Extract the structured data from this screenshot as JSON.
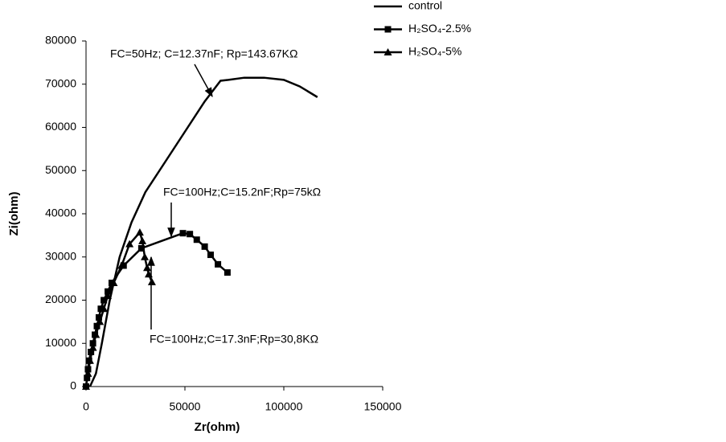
{
  "chart_data": {
    "type": "scatter",
    "x_label": "Zr(ohm)",
    "y_label": "Zi(ohm)",
    "xlim": [
      0,
      150000
    ],
    "xticks": [
      0,
      50000,
      100000,
      150000
    ],
    "ylim": [
      0,
      80000
    ],
    "yticks": [
      0,
      10000,
      20000,
      30000,
      40000,
      50000,
      60000,
      70000,
      80000
    ],
    "grid": false,
    "legend": "top-right",
    "annotations": [
      "FC=50Hz; C=12.37nF;  Rp=143.67KΩ",
      "FC=100Hz;C=15.2nF;Rp=75kΩ",
      "FC=100Hz;C=17.3nF;Rp=30,8KΩ"
    ],
    "series": [
      {
        "name": "control",
        "color": "#000000",
        "marker": "none",
        "x": [
          2000,
          5000,
          8000,
          12000,
          17000,
          23000,
          30000,
          40000,
          50000,
          60000,
          65000,
          68000,
          72000,
          80000,
          90000,
          100000,
          108000,
          117000
        ],
        "values": [
          0,
          3000,
          10000,
          20000,
          30000,
          38000,
          45000,
          52000,
          59000,
          66000,
          69000,
          70800,
          71000,
          71500,
          71500,
          71000,
          69500,
          67000
        ]
      },
      {
        "name": "H₂SO₄-2.5%",
        "color": "#000000",
        "marker": "square",
        "x": [
          0,
          500,
          1000,
          1500,
          2500,
          3500,
          4500,
          5500,
          6500,
          7500,
          9000,
          11000,
          13000,
          19000,
          28000,
          49000,
          52500,
          56000,
          60000,
          63000,
          66700,
          71500
        ],
        "values": [
          0,
          2000,
          4000,
          6000,
          8000,
          10000,
          12000,
          14000,
          16000,
          18000,
          20000,
          22000,
          24000,
          28000,
          32000,
          35500,
          35300,
          34000,
          32400,
          30500,
          28300,
          26400
        ]
      },
      {
        "name": "H₂SO₄-5%",
        "color": "#000000",
        "marker": "triangle",
        "x": [
          0,
          1000,
          2000,
          3500,
          5000,
          7000,
          9000,
          11000,
          14000,
          18000,
          22000,
          27200,
          28500,
          29700,
          30900,
          31700,
          33300
        ],
        "values": [
          0,
          3000,
          6000,
          9000,
          12000,
          15000,
          18000,
          21000,
          24000,
          28000,
          33000,
          35700,
          33700,
          30000,
          27500,
          26000,
          24200
        ]
      }
    ]
  }
}
